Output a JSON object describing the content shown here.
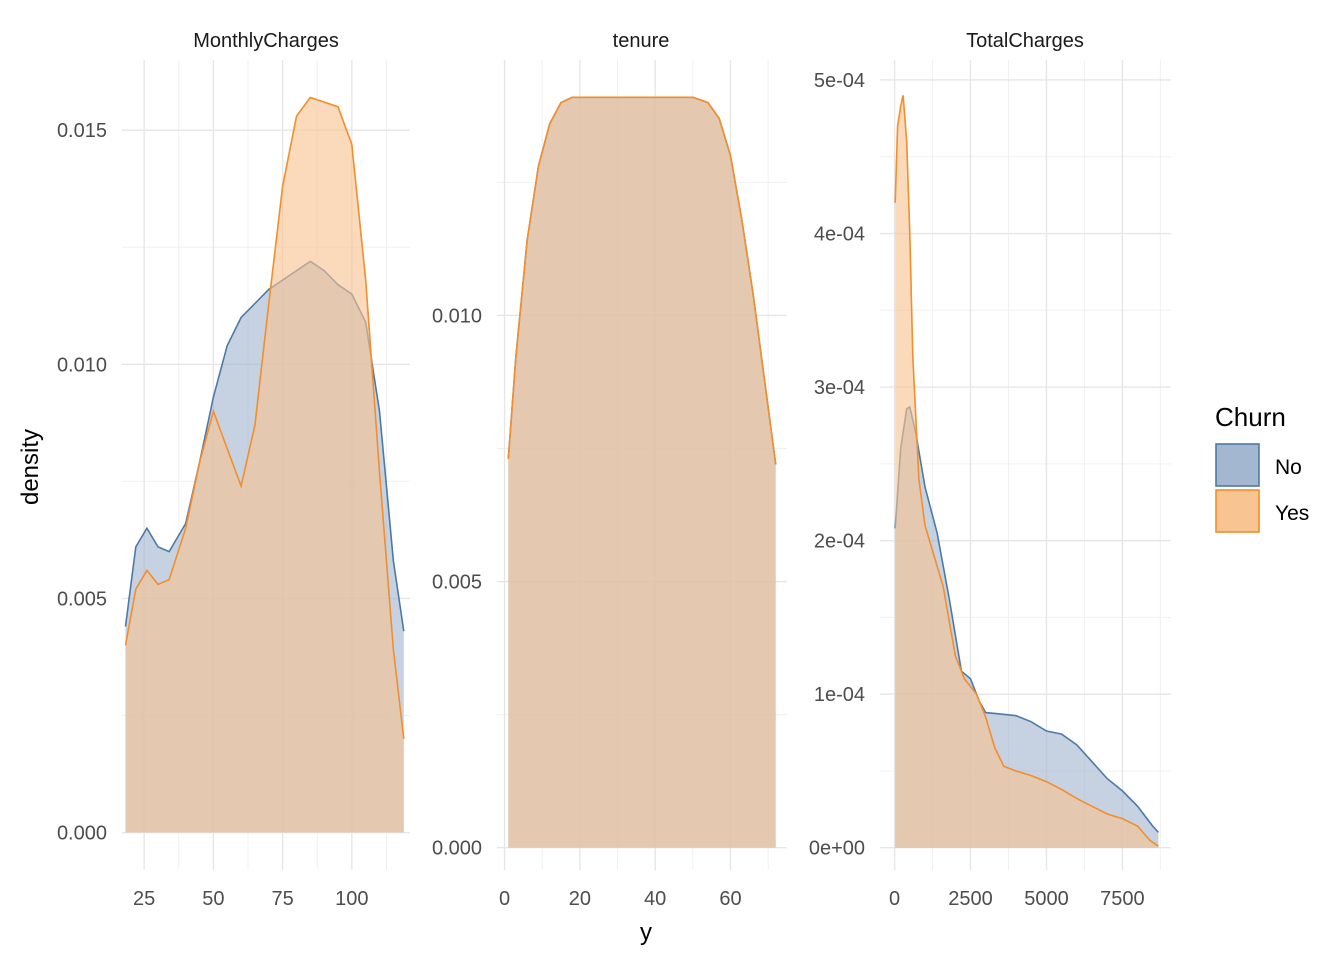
{
  "chart_data": {
    "type": "area",
    "xlabel": "y",
    "ylabel": "density",
    "legend": {
      "title": "Churn",
      "placement": "right",
      "entries": [
        {
          "name": "No",
          "fill": "#a3b7d0",
          "stroke": "#4e79a7"
        },
        {
          "name": "Yes",
          "fill": "#f7c492",
          "stroke": "#f28e2b"
        }
      ]
    },
    "grid": true,
    "panels": [
      {
        "title": "MonthlyCharges",
        "xlim": [
          17,
          121
        ],
        "ylim": [
          -0.0008,
          0.0165
        ],
        "xticks": [
          25,
          50,
          75,
          100
        ],
        "xtick_labels": [
          "25",
          "50",
          "75",
          "100"
        ],
        "yticks": [
          0,
          0.005,
          0.01,
          0.015
        ],
        "ytick_labels": [
          "0.000",
          "0.005",
          "0.010",
          "0.015"
        ],
        "series": [
          {
            "name": "No",
            "x": [
              18.25,
              22,
              26,
              30,
              34,
              40,
              45,
              50,
              55,
              60,
              65,
              70,
              75,
              80,
              85,
              90,
              95,
              100,
              105,
              110,
              115,
              118.75
            ],
            "y": [
              0.0044,
              0.0061,
              0.0065,
              0.0061,
              0.006,
              0.0066,
              0.0079,
              0.0093,
              0.0104,
              0.011,
              0.0113,
              0.0116,
              0.0118,
              0.012,
              0.0122,
              0.012,
              0.0117,
              0.0115,
              0.0109,
              0.009,
              0.0058,
              0.0043
            ]
          },
          {
            "name": "Yes",
            "x": [
              18.25,
              22,
              26,
              30,
              34,
              40,
              45,
              50,
              55,
              60,
              65,
              70,
              75,
              80,
              85,
              90,
              95,
              100,
              105,
              110,
              115,
              118.75
            ],
            "y": [
              0.004,
              0.0052,
              0.0056,
              0.0053,
              0.0054,
              0.0065,
              0.0079,
              0.009,
              0.0082,
              0.0074,
              0.0087,
              0.0113,
              0.0138,
              0.0153,
              0.0157,
              0.0156,
              0.0155,
              0.0147,
              0.0118,
              0.0077,
              0.0039,
              0.002
            ]
          }
        ]
      },
      {
        "title": "tenure",
        "xlim": [
          -2,
          75
        ],
        "ylim": [
          -0.00042,
          0.0148
        ],
        "xticks": [
          0,
          20,
          40,
          60
        ],
        "xtick_labels": [
          "0",
          "20",
          "40",
          "60"
        ],
        "yticks": [
          0,
          0.005,
          0.01
        ],
        "ytick_labels": [
          "0.000",
          "0.005",
          "0.010"
        ],
        "series": [
          {
            "name": "No",
            "x": [
              1,
              3,
              6,
              9,
              12,
              15,
              18,
              22,
              26,
              30,
              35,
              40,
              45,
              50,
              54,
              57,
              60,
              63,
              66,
              69,
              72
            ],
            "y": [
              0.0073,
              0.0092,
              0.0114,
              0.0128,
              0.0136,
              0.014,
              0.0141,
              0.0141,
              0.0141,
              0.0141,
              0.0141,
              0.0141,
              0.0141,
              0.0141,
              0.014,
              0.0137,
              0.013,
              0.0118,
              0.0104,
              0.0088,
              0.0072
            ]
          },
          {
            "name": "Yes",
            "x": [
              1,
              3,
              6,
              9,
              12,
              15,
              18,
              22,
              26,
              30,
              35,
              40,
              45,
              50,
              54,
              57,
              60,
              63,
              66,
              69,
              72
            ],
            "y": [
              0.0073,
              0.0092,
              0.0114,
              0.0128,
              0.0136,
              0.014,
              0.0141,
              0.0141,
              0.0141,
              0.0141,
              0.0141,
              0.0141,
              0.0141,
              0.0141,
              0.014,
              0.0137,
              0.013,
              0.0118,
              0.0104,
              0.0088,
              0.0072
            ]
          }
        ]
      },
      {
        "title": "TotalCharges",
        "xlim": [
          -480,
          9100
        ],
        "ylim": [
          -1.45e-05,
          0.000513
        ],
        "xticks": [
          0,
          2500,
          5000,
          7500
        ],
        "xtick_labels": [
          "0",
          "2500",
          "5000",
          "7500"
        ],
        "yticks": [
          0,
          0.0001,
          0.0002,
          0.0003,
          0.0004,
          0.0005
        ],
        "ytick_labels": [
          "0e+00",
          "1e-04",
          "2e-04",
          "3e-04",
          "4e-04",
          "5e-04"
        ],
        "series": [
          {
            "name": "No",
            "x": [
              18.8,
              200,
              400,
              500,
              700,
              1000,
              1400,
              1800,
              2200,
              2500,
              2800,
              3000,
              3500,
              4000,
              4500,
              5000,
              5500,
              6000,
              6500,
              7000,
              7500,
              8000,
              8500,
              8684.8
            ],
            "y": [
              0.000208,
              0.00026,
              0.000286,
              0.000287,
              0.00027,
              0.000235,
              0.000205,
              0.000162,
              0.000115,
              0.00011,
              9.5e-05,
              8.8e-05,
              8.7e-05,
              8.6e-05,
              8.2e-05,
              7.6e-05,
              7.4e-05,
              6.7e-05,
              5.6e-05,
              4.5e-05,
              3.7e-05,
              2.7e-05,
              1.4e-05,
              1e-05
            ]
          },
          {
            "name": "Yes",
            "x": [
              18.8,
              100,
              200,
              280,
              400,
              500,
              600,
              800,
              1000,
              1300,
              1600,
              2000,
              2300,
              2700,
              3000,
              3300,
              3600,
              4000,
              4500,
              5000,
              5500,
              6000,
              6500,
              7000,
              7500,
              8000,
              8400,
              8684.8
            ],
            "y": [
              0.00042,
              0.00047,
              0.000483,
              0.00049,
              0.00046,
              0.0004,
              0.00032,
              0.00024,
              0.00021,
              0.00019,
              0.00017,
              0.000125,
              0.00011,
              0.0001,
              8.5e-05,
              6.5e-05,
              5.3e-05,
              5e-05,
              4.7e-05,
              4.3e-05,
              3.8e-05,
              3.2e-05,
              2.7e-05,
              2.2e-05,
              1.9e-05,
              1.4e-05,
              5e-06,
              1e-06
            ]
          }
        ]
      }
    ]
  }
}
